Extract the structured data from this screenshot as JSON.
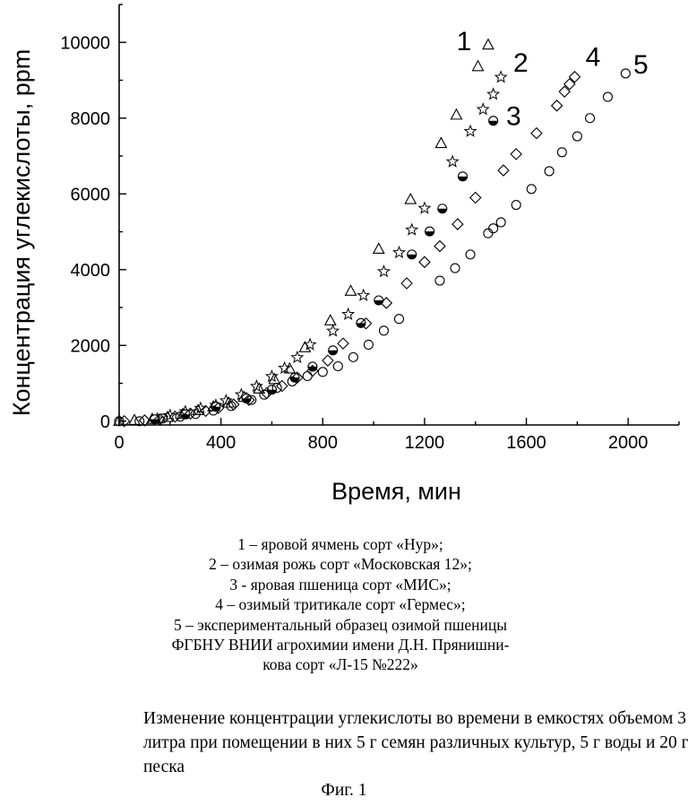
{
  "chart_data": {
    "type": "scatter",
    "title": "",
    "xlabel": "Время, мин",
    "ylabel": "Концентрация углекислоты, ppm",
    "xlim": [
      0,
      2200
    ],
    "ylim": [
      -100,
      11000
    ],
    "x_ticks": [
      0,
      400,
      800,
      1200,
      1600,
      2000
    ],
    "y_ticks": [
      0,
      2000,
      4000,
      6000,
      8000,
      10000
    ],
    "grid": false,
    "series": [
      {
        "name": "1",
        "marker": "triangle",
        "points": [
          [
            0,
            0
          ],
          [
            60,
            20
          ],
          [
            130,
            50
          ],
          [
            190,
            100
          ],
          [
            250,
            180
          ],
          [
            310,
            280
          ],
          [
            370,
            380
          ],
          [
            430,
            480
          ],
          [
            490,
            630
          ],
          [
            550,
            850
          ],
          [
            610,
            1100
          ],
          [
            670,
            1380
          ],
          [
            730,
            1940
          ],
          [
            830,
            2650
          ],
          [
            910,
            3430
          ],
          [
            1020,
            4540
          ],
          [
            1145,
            5850
          ],
          [
            1265,
            7330
          ],
          [
            1325,
            8080
          ],
          [
            1410,
            9360
          ],
          [
            1450,
            9930
          ]
        ]
      },
      {
        "name": "2",
        "marker": "star",
        "points": [
          [
            150,
            60
          ],
          [
            200,
            150
          ],
          [
            260,
            250
          ],
          [
            320,
            340
          ],
          [
            380,
            420
          ],
          [
            420,
            540
          ],
          [
            480,
            700
          ],
          [
            540,
            920
          ],
          [
            600,
            1180
          ],
          [
            650,
            1400
          ],
          [
            700,
            1680
          ],
          [
            750,
            2020
          ],
          [
            840,
            2380
          ],
          [
            900,
            2820
          ],
          [
            960,
            3320
          ],
          [
            1040,
            3950
          ],
          [
            1100,
            4450
          ],
          [
            1150,
            5050
          ],
          [
            1200,
            5620
          ],
          [
            1310,
            6850
          ],
          [
            1380,
            7650
          ],
          [
            1430,
            8230
          ],
          [
            1470,
            8630
          ],
          [
            1500,
            9080
          ]
        ]
      },
      {
        "name": "3",
        "marker": "half-circle",
        "points": [
          [
            140,
            50
          ],
          [
            260,
            180
          ],
          [
            380,
            380
          ],
          [
            500,
            600
          ],
          [
            600,
            830
          ],
          [
            690,
            1150
          ],
          [
            760,
            1440
          ],
          [
            840,
            1870
          ],
          [
            950,
            2590
          ],
          [
            1020,
            3190
          ],
          [
            1150,
            4400
          ],
          [
            1220,
            5010
          ],
          [
            1270,
            5610
          ],
          [
            1350,
            6460
          ],
          [
            1470,
            7930
          ]
        ]
      },
      {
        "name": "4",
        "marker": "diamond",
        "points": [
          [
            20,
            0
          ],
          [
            100,
            20
          ],
          [
            160,
            50
          ],
          [
            220,
            120
          ],
          [
            280,
            200
          ],
          [
            340,
            270
          ],
          [
            390,
            350
          ],
          [
            450,
            440
          ],
          [
            510,
            560
          ],
          [
            580,
            740
          ],
          [
            640,
            930
          ],
          [
            700,
            1150
          ],
          [
            760,
            1330
          ],
          [
            820,
            1600
          ],
          [
            880,
            2050
          ],
          [
            970,
            2580
          ],
          [
            1050,
            3120
          ],
          [
            1130,
            3640
          ],
          [
            1200,
            4200
          ],
          [
            1260,
            4620
          ],
          [
            1330,
            5200
          ],
          [
            1400,
            5900
          ],
          [
            1510,
            6620
          ],
          [
            1560,
            7050
          ],
          [
            1640,
            7600
          ],
          [
            1720,
            8330
          ],
          [
            1750,
            8700
          ],
          [
            1770,
            8900
          ],
          [
            1790,
            9090
          ]
        ]
      },
      {
        "name": "5",
        "marker": "circle",
        "points": [
          [
            0,
            0
          ],
          [
            80,
            0
          ],
          [
            170,
            70
          ],
          [
            240,
            120
          ],
          [
            300,
            190
          ],
          [
            370,
            280
          ],
          [
            440,
            400
          ],
          [
            520,
            560
          ],
          [
            570,
            700
          ],
          [
            620,
            880
          ],
          [
            680,
            1050
          ],
          [
            740,
            1190
          ],
          [
            800,
            1300
          ],
          [
            860,
            1450
          ],
          [
            920,
            1690
          ],
          [
            980,
            2020
          ],
          [
            1040,
            2390
          ],
          [
            1100,
            2700
          ],
          [
            1260,
            3710
          ],
          [
            1320,
            4040
          ],
          [
            1380,
            4400
          ],
          [
            1450,
            4960
          ],
          [
            1470,
            5090
          ],
          [
            1500,
            5250
          ],
          [
            1560,
            5710
          ],
          [
            1620,
            6130
          ],
          [
            1690,
            6600
          ],
          [
            1740,
            7100
          ],
          [
            1800,
            7520
          ],
          [
            1850,
            8000
          ],
          [
            1920,
            8560
          ],
          [
            1990,
            9180
          ]
        ]
      }
    ],
    "annotations": [
      {
        "text": "1",
        "x": 1355,
        "y": 10050
      },
      {
        "text": "2",
        "x": 1578,
        "y": 9480
      },
      {
        "text": "3",
        "x": 1550,
        "y": 8080
      },
      {
        "text": "4",
        "x": 1862,
        "y": 9640
      },
      {
        "text": "5",
        "x": 2050,
        "y": 9440
      }
    ]
  },
  "legend": {
    "lines": [
      "1 – яровой ячмень сорт «Нур»;",
      "2 – озимая рожь сорт «Московская 12»;",
      "3 - яровая пшеница сорт «МИС»;",
      "4 – озимый тритикале сорт «Гермес»;",
      "5 – экспериментальный образец озимой пшеницы",
      "ФГБНУ ВНИИ агрохимии имени Д.Н. Прянишни-",
      "кова сорт «Л-15 №222»"
    ]
  },
  "caption": {
    "text": "Изменение концентрации углекислоты во времени в емкостях объемом 3 литра при помещении в них 5 г семян различных культур, 5 г воды и 20 г песка"
  },
  "figure_label": "Фиг. 1"
}
